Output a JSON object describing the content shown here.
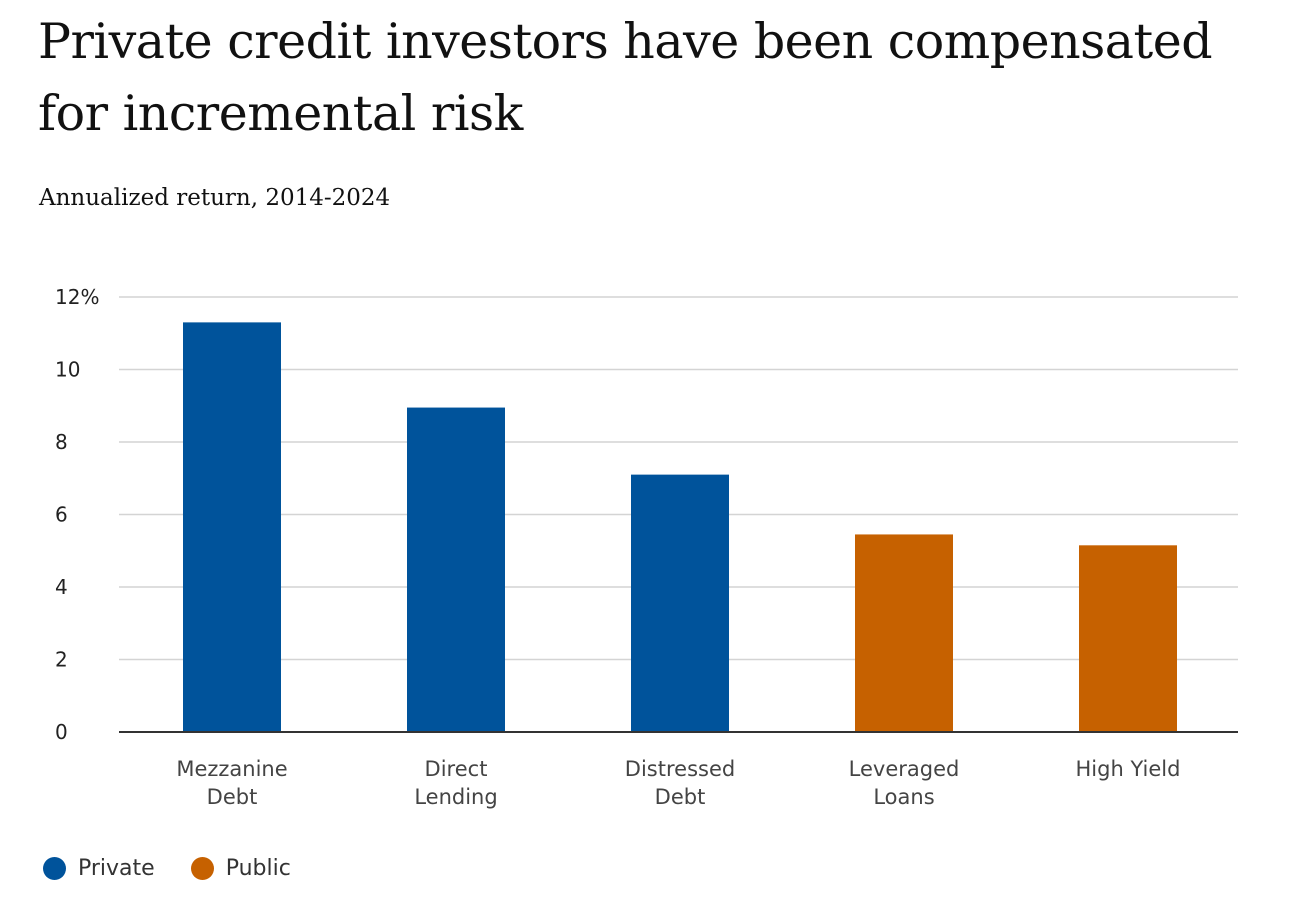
{
  "header": {
    "title": "Private credit investors have been compensated for incremental risk",
    "subtitle": "Annualized return, 2014-2024"
  },
  "colors": {
    "private": "#00539b",
    "public": "#c66100",
    "grid": "#d4d4d4",
    "axis": "#333333"
  },
  "legend": [
    {
      "label": "Private",
      "group": "private"
    },
    {
      "label": "Public",
      "group": "public"
    }
  ],
  "chart_data": {
    "type": "bar",
    "title": "Private credit investors have been compensated for incremental risk",
    "subtitle": "Annualized return, 2014-2024",
    "xlabel": "",
    "ylabel": "",
    "ylim": [
      0,
      12
    ],
    "yticks": [
      0,
      2,
      4,
      6,
      8,
      10,
      12
    ],
    "ytick_labels": [
      "0",
      "2",
      "4",
      "6",
      "8",
      "10",
      "12%"
    ],
    "grid": true,
    "legend_position": "bottom-left",
    "categories": [
      {
        "lines": [
          "Mezzanine",
          "Debt"
        ],
        "group": "private"
      },
      {
        "lines": [
          "Direct",
          "Lending"
        ],
        "group": "private"
      },
      {
        "lines": [
          "Distressed",
          "Debt"
        ],
        "group": "private"
      },
      {
        "lines": [
          "Leveraged",
          "Loans"
        ],
        "group": "public"
      },
      {
        "lines": [
          "High Yield"
        ],
        "group": "public"
      }
    ],
    "values": [
      11.3,
      8.95,
      7.1,
      5.45,
      5.15
    ]
  }
}
